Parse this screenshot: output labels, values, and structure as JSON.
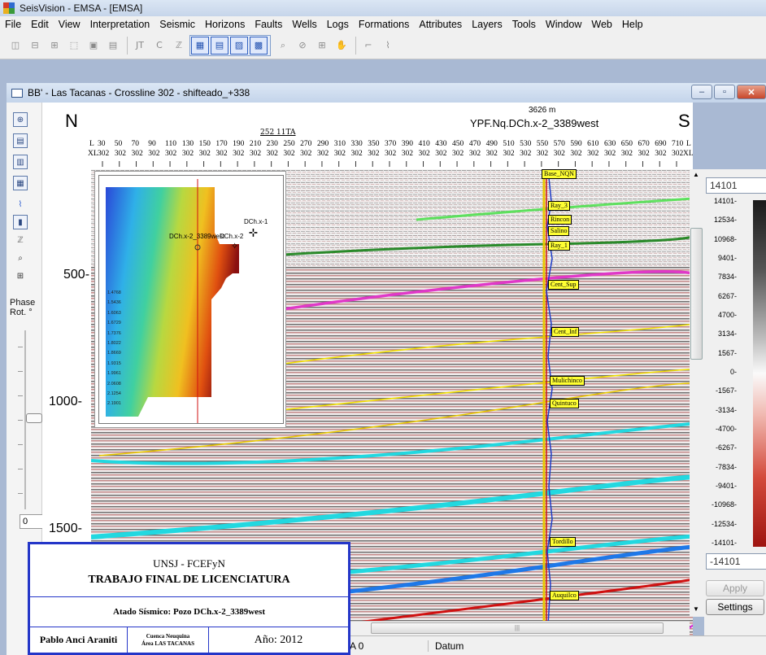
{
  "app": {
    "title": "SeisVision - EMSA - [EMSA]"
  },
  "menu": [
    "File",
    "Edit",
    "View",
    "Interpretation",
    "Seismic",
    "Horizons",
    "Faults",
    "Wells",
    "Logs",
    "Formations",
    "Attributes",
    "Layers",
    "Tools",
    "Window",
    "Web",
    "Help"
  ],
  "toolbar": {
    "jt": "JT",
    "c": "C"
  },
  "child_window": {
    "title": "BB' - Las Tacanas - Crossline 302 - shifteado_+338",
    "minimize": "–",
    "maximize": "▫",
    "close": "✕"
  },
  "left_strip": {
    "phase_label": "Phase",
    "rot_label": "Rot. °",
    "rotation_value": "0"
  },
  "section": {
    "north": "N",
    "south": "S",
    "well_distance": "3626 m",
    "well_name": "YPF.Nq.DCh.x-2_3389west",
    "ta_label": "252 11TA",
    "l_label": "L",
    "xl_label": "XL",
    "inlines": [
      "30",
      "50",
      "70",
      "90",
      "110",
      "130",
      "150",
      "170",
      "190",
      "210",
      "230",
      "250",
      "270",
      "290",
      "310",
      "330",
      "350",
      "370",
      "390",
      "410",
      "430",
      "450",
      "470",
      "490",
      "510",
      "530",
      "550",
      "570",
      "590",
      "610",
      "630",
      "650",
      "670",
      "690",
      "710"
    ],
    "crossline": "302",
    "depths": [
      "500-",
      "1000-",
      "1500-"
    ]
  },
  "horizons": [
    {
      "name": "Base_NQN",
      "color": "#f2f200"
    },
    {
      "name": "Ray_3",
      "color": "#5ee05e"
    },
    {
      "name": "Rincon",
      "color": "#f2f200"
    },
    {
      "name": "Salino",
      "color": "#f2f200"
    },
    {
      "name": "Ray_1",
      "color": "#2a8a2a"
    },
    {
      "name": "Cent_Sup",
      "color": "#e038c8"
    },
    {
      "name": "Cent_Inf",
      "color": "#f2e000"
    },
    {
      "name": "Mulichinco",
      "color": "#f2e000"
    },
    {
      "name": "Quintuco",
      "color": "#e8c800"
    },
    {
      "name": "Tordillo",
      "color": "#d01010"
    },
    {
      "name": "Auquilco",
      "color": "#e030e0"
    }
  ],
  "inset_map": {
    "wells": [
      "DCh.x-1",
      "DCh.x-2_3389west",
      "DCh.x-2"
    ],
    "scale": [
      "1.4768",
      "1.5436",
      "1.6063",
      "1.6729",
      "1.7376",
      "1.8022",
      "1.8669",
      "1.9315",
      "1.9961",
      "2.0608",
      "2.1254",
      "2.1901"
    ]
  },
  "colorbar": {
    "top_value": "14101",
    "bottom_value": "-14101",
    "labels": [
      "14101-",
      "12534-",
      "10968-",
      "9401-",
      "7834-",
      "6267-",
      "4700-",
      "3134-",
      "1567-",
      "0-",
      "-1567-",
      "-3134-",
      "-4700-",
      "-6267-",
      "-7834-",
      "-9401-",
      "-10968-",
      "-12534-",
      "-14101-"
    ],
    "apply": "Apply",
    "settings": "Settings"
  },
  "statusbar": {
    "field1": "A 0",
    "field2": "Datum"
  },
  "title_block": {
    "institution": "UNSJ - FCEFyN",
    "thesis": "TRABAJO FINAL DE LICENCIATURA",
    "subject": "Atado Sísmico: Pozo DCh.x-2_3389west",
    "author": "Pablo Anci Araniti",
    "basin": "Cuenca Neuquina",
    "area": "Área LAS TACANAS",
    "year": "Año: 2012"
  }
}
